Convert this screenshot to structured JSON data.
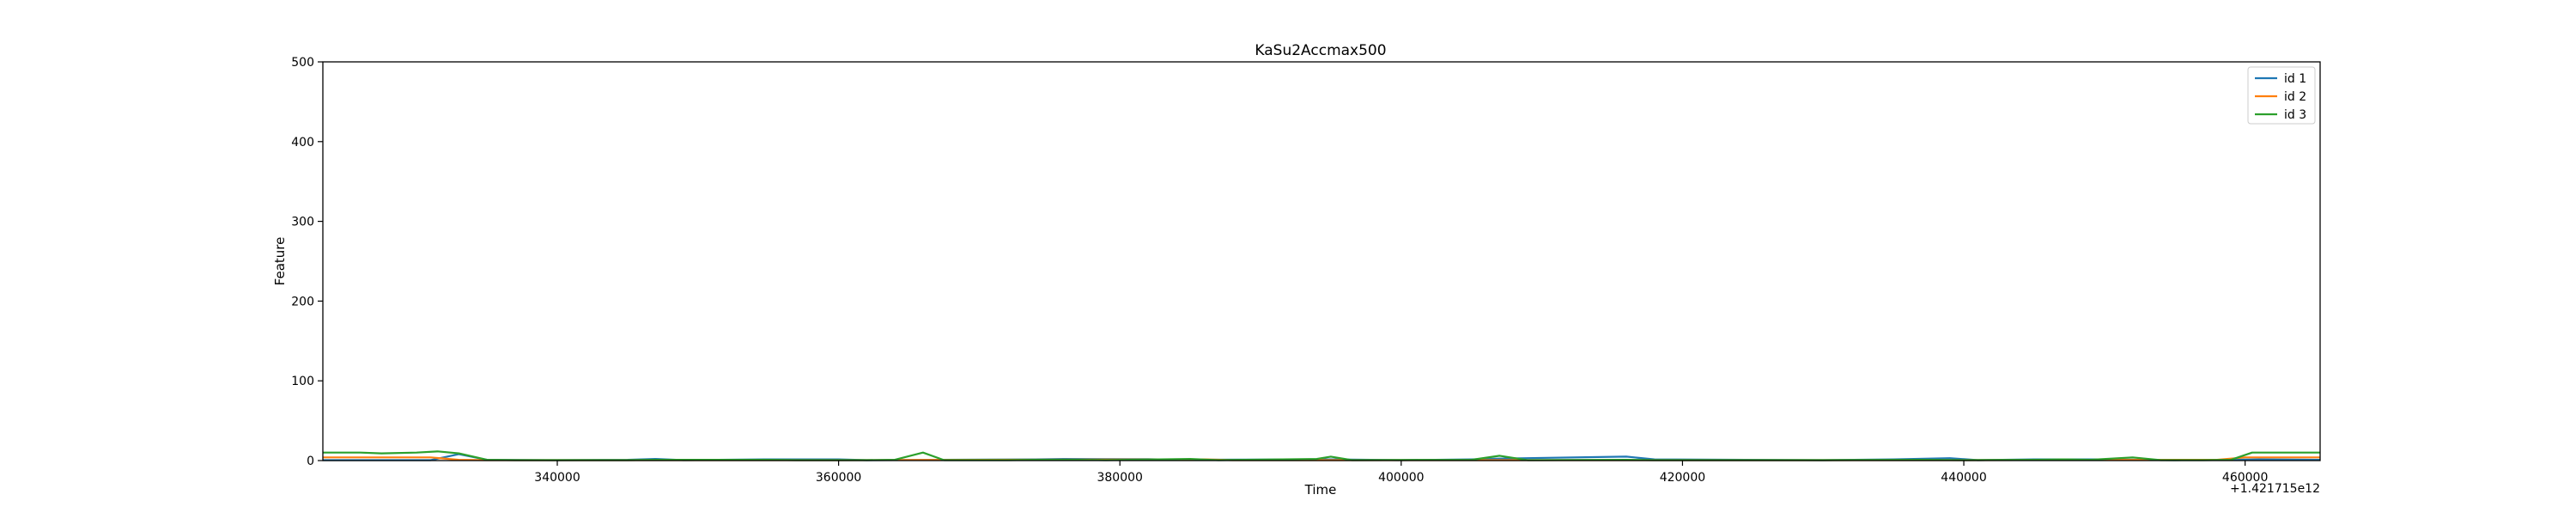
{
  "chart_data": {
    "type": "line",
    "title": "KaSu2Accmax500",
    "xlabel": "Time",
    "ylabel": "Feature",
    "x_offset_label": "+1.421715e12",
    "xlim": [
      323333,
      465333
    ],
    "ylim": [
      0,
      500
    ],
    "xticks": [
      340000,
      360000,
      380000,
      400000,
      420000,
      440000,
      460000
    ],
    "yticks": [
      0,
      100,
      200,
      300,
      400,
      500
    ],
    "grid": false,
    "legend_position": "top-right",
    "series": [
      {
        "name": "id 1",
        "color": "#1f77b4",
        "points": [
          [
            323333,
            0.5
          ],
          [
            331000,
            0.5
          ],
          [
            333000,
            8
          ],
          [
            335000,
            1
          ],
          [
            340000,
            0.5
          ],
          [
            345000,
            1
          ],
          [
            347000,
            2
          ],
          [
            349000,
            0.5
          ],
          [
            355000,
            1.5
          ],
          [
            360000,
            1.5
          ],
          [
            362000,
            0.5
          ],
          [
            374000,
            1.5
          ],
          [
            376000,
            2
          ],
          [
            382000,
            1.8
          ],
          [
            384000,
            1
          ],
          [
            395000,
            1.5
          ],
          [
            400000,
            0.5
          ],
          [
            405000,
            1.5
          ],
          [
            407000,
            2.5
          ],
          [
            416000,
            5
          ],
          [
            418000,
            1.5
          ],
          [
            430000,
            0.5
          ],
          [
            435000,
            1.5
          ],
          [
            439000,
            3
          ],
          [
            441000,
            0.5
          ],
          [
            445000,
            1.5
          ],
          [
            450000,
            1.5
          ],
          [
            455000,
            0.5
          ],
          [
            459000,
            1
          ],
          [
            461000,
            1.5
          ],
          [
            465333,
            1
          ]
        ]
      },
      {
        "name": "id 2",
        "color": "#ff7f0e",
        "points": [
          [
            323333,
            4
          ],
          [
            331000,
            4
          ],
          [
            333000,
            1
          ],
          [
            335000,
            0.5
          ],
          [
            345000,
            0.5
          ],
          [
            360000,
            0.5
          ],
          [
            386000,
            1.5
          ],
          [
            388000,
            0.5
          ],
          [
            395000,
            0.5
          ],
          [
            405000,
            0.5
          ],
          [
            420000,
            0.5
          ],
          [
            440000,
            0.5
          ],
          [
            458000,
            1
          ],
          [
            460000,
            4
          ],
          [
            465333,
            4
          ]
        ]
      },
      {
        "name": "id 3",
        "color": "#2ca02c",
        "points": [
          [
            323333,
            10
          ],
          [
            326000,
            10
          ],
          [
            327500,
            9
          ],
          [
            330000,
            10
          ],
          [
            331500,
            11.5
          ],
          [
            333000,
            9
          ],
          [
            335000,
            1
          ],
          [
            337000,
            0.5
          ],
          [
            345000,
            0.5
          ],
          [
            347000,
            1
          ],
          [
            355000,
            1
          ],
          [
            357000,
            0.5
          ],
          [
            362000,
            0.5
          ],
          [
            364000,
            1
          ],
          [
            366000,
            10
          ],
          [
            367500,
            0.5
          ],
          [
            372000,
            0.5
          ],
          [
            374000,
            1
          ],
          [
            377000,
            1
          ],
          [
            379000,
            0.5
          ],
          [
            385000,
            2
          ],
          [
            387000,
            0.5
          ],
          [
            394000,
            2
          ],
          [
            395000,
            5
          ],
          [
            396500,
            0.5
          ],
          [
            405000,
            1
          ],
          [
            407000,
            6
          ],
          [
            409000,
            0.5
          ],
          [
            416000,
            1
          ],
          [
            418000,
            0.5
          ],
          [
            430000,
            0.5
          ],
          [
            437000,
            1
          ],
          [
            440000,
            0.5
          ],
          [
            445000,
            1
          ],
          [
            447000,
            1.5
          ],
          [
            449000,
            1
          ],
          [
            452000,
            4
          ],
          [
            454000,
            0.5
          ],
          [
            457000,
            0.5
          ],
          [
            459000,
            1
          ],
          [
            460500,
            10
          ],
          [
            465333,
            10
          ]
        ]
      }
    ]
  }
}
